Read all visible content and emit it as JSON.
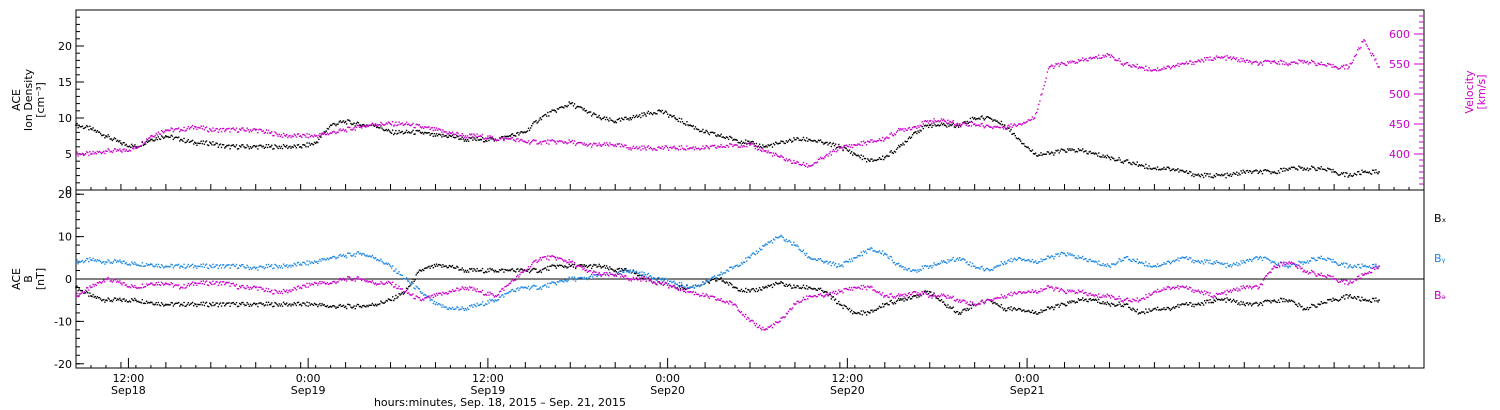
{
  "figure": {
    "footer_label": "hours:minutes, Sep. 18, 2015 – Sep. 21, 2015"
  },
  "colors": {
    "density": "#000000",
    "velocity": "#cc00cc",
    "bx": "#000000",
    "by": "#1e88e5",
    "bz": "#cc00cc"
  },
  "chart_data": [
    {
      "type": "scatter",
      "panel": "top",
      "xlim_hours": [
        0,
        90
      ],
      "left_axis": {
        "label_lines": [
          "ACE",
          "Ion Density",
          "[cm⁻³]"
        ],
        "ylim": [
          0,
          25
        ],
        "ticks": [
          0,
          5,
          10,
          15,
          20
        ]
      },
      "right_axis": {
        "label_lines": [
          "ACE",
          "Velocity",
          "[km/s]"
        ],
        "ylim": [
          340,
          640
        ],
        "ticks": [
          400,
          450,
          500,
          550,
          600
        ]
      },
      "series": [
        {
          "color_key": "density",
          "axis": "left",
          "x": [
            0,
            1,
            2,
            3,
            4,
            5,
            6,
            7,
            8,
            9,
            10,
            11,
            12,
            13,
            14,
            15,
            16,
            17,
            18,
            19,
            20,
            21,
            22,
            23,
            24,
            25,
            26,
            27,
            28,
            29,
            30,
            31,
            32,
            33,
            34,
            35,
            36,
            37,
            38,
            39,
            40,
            41,
            42,
            43,
            44,
            45,
            46,
            47,
            48,
            49,
            50,
            51,
            52,
            53,
            54,
            55,
            56,
            57,
            58,
            59,
            60,
            61,
            62,
            63,
            64,
            65,
            66,
            67,
            68,
            69,
            70,
            71,
            72,
            73,
            74,
            75,
            76,
            77,
            78,
            79,
            80,
            81,
            82,
            83,
            84,
            85,
            86,
            87
          ],
          "y": [
            9,
            8.5,
            7.5,
            6.5,
            6,
            7,
            7.5,
            7,
            6.5,
            6.5,
            6,
            6,
            6,
            6,
            6,
            6,
            6.5,
            9,
            9.5,
            9,
            9,
            8,
            8,
            8,
            7.5,
            7.5,
            7,
            7,
            7,
            7.5,
            8,
            10,
            11,
            12,
            11,
            10,
            9.5,
            10,
            10.5,
            11,
            10,
            9,
            8,
            7.5,
            7,
            6.5,
            6,
            6.5,
            7,
            7,
            6.5,
            6,
            5,
            4,
            4.5,
            6,
            8,
            9,
            9,
            9,
            10,
            10,
            9,
            7,
            5,
            5,
            5.5,
            5.5,
            5,
            4.5,
            4,
            3.5,
            3,
            3,
            2.5,
            2,
            2,
            2,
            2.5,
            2.5,
            2.5,
            3,
            3,
            3,
            2.5,
            2,
            2.5,
            2.5
          ]
        },
        {
          "color_key": "velocity",
          "axis": "right",
          "x": [
            0,
            1,
            2,
            3,
            4,
            5,
            6,
            7,
            8,
            9,
            10,
            11,
            12,
            13,
            14,
            15,
            16,
            17,
            18,
            19,
            20,
            21,
            22,
            23,
            24,
            25,
            26,
            27,
            28,
            29,
            30,
            31,
            32,
            33,
            34,
            35,
            36,
            37,
            38,
            39,
            40,
            41,
            42,
            43,
            44,
            45,
            46,
            47,
            48,
            49,
            50,
            51,
            52,
            53,
            54,
            55,
            56,
            57,
            58,
            59,
            60,
            61,
            62,
            63,
            64,
            65,
            66,
            67,
            68,
            69,
            70,
            71,
            72,
            73,
            74,
            75,
            76,
            77,
            78,
            79,
            80,
            81,
            82,
            83,
            84,
            85,
            86,
            87
          ],
          "y": [
            400,
            400,
            405,
            405,
            410,
            430,
            440,
            440,
            445,
            440,
            440,
            440,
            440,
            435,
            430,
            430,
            430,
            435,
            440,
            445,
            450,
            450,
            450,
            445,
            440,
            435,
            430,
            430,
            425,
            425,
            420,
            420,
            420,
            420,
            415,
            415,
            415,
            410,
            410,
            410,
            410,
            410,
            410,
            412,
            415,
            415,
            405,
            395,
            385,
            380,
            395,
            410,
            415,
            420,
            425,
            440,
            445,
            455,
            455,
            450,
            450,
            445,
            445,
            450,
            460,
            545,
            550,
            555,
            560,
            565,
            550,
            545,
            540,
            545,
            550,
            555,
            560,
            560,
            555,
            550,
            555,
            550,
            555,
            550,
            545,
            545,
            590,
            545
          ]
        }
      ]
    },
    {
      "type": "scatter",
      "panel": "bottom",
      "xlim_hours": [
        0,
        90
      ],
      "left_axis": {
        "label_lines": [
          "ACE",
          "B",
          "[nT]"
        ],
        "ylim": [
          -21,
          21
        ],
        "ticks": [
          -20,
          -10,
          0,
          10,
          20
        ]
      },
      "legend": [
        "Bₓ",
        "Bᵧ",
        "Bₔ"
      ],
      "x_ticks": [
        {
          "hour": 3.5,
          "line1": "12:00",
          "line2": "Sep18"
        },
        {
          "hour": 15.5,
          "line1": "0:00",
          "line2": "Sep19"
        },
        {
          "hour": 27.5,
          "line1": "12:00",
          "line2": "Sep19"
        },
        {
          "hour": 39.5,
          "line1": "0:00",
          "line2": "Sep20"
        },
        {
          "hour": 51.5,
          "line1": "12:00",
          "line2": "Sep20"
        },
        {
          "hour": 63.5,
          "line1": "0:00",
          "line2": "Sep21"
        }
      ],
      "series": [
        {
          "color_key": "bx",
          "x": [
            0,
            1,
            2,
            3,
            4,
            5,
            6,
            7,
            8,
            9,
            10,
            11,
            12,
            13,
            14,
            15,
            16,
            17,
            18,
            19,
            20,
            21,
            22,
            23,
            24,
            25,
            26,
            27,
            28,
            29,
            30,
            31,
            32,
            33,
            34,
            35,
            36,
            37,
            38,
            39,
            40,
            41,
            42,
            43,
            44,
            45,
            46,
            47,
            48,
            49,
            50,
            51,
            52,
            53,
            54,
            55,
            56,
            57,
            58,
            59,
            60,
            61,
            62,
            63,
            64,
            65,
            66,
            67,
            68,
            69,
            70,
            71,
            72,
            73,
            74,
            75,
            76,
            77,
            78,
            79,
            80,
            81,
            82,
            83,
            84,
            85,
            86,
            87
          ],
          "y": [
            -2,
            -4,
            -5,
            -5,
            -5,
            -5.5,
            -6,
            -6,
            -6,
            -6,
            -6,
            -6,
            -6,
            -6,
            -6,
            -6,
            -6,
            -6.5,
            -6.5,
            -6.5,
            -6,
            -5,
            -3,
            2,
            3,
            3,
            2,
            2,
            2,
            2,
            2,
            2,
            3,
            3,
            3,
            3,
            2,
            2,
            0,
            -1,
            -2,
            -2,
            -1,
            0,
            -2,
            -3,
            -2,
            -1,
            -2,
            -2,
            -3,
            -6,
            -8,
            -8,
            -6,
            -5,
            -4,
            -3,
            -6,
            -8,
            -6,
            -5,
            -7,
            -7,
            -8,
            -7,
            -6,
            -5,
            -5,
            -6,
            -6,
            -8,
            -7,
            -7,
            -6,
            -6,
            -5,
            -5,
            -6,
            -6,
            -5,
            -5,
            -7,
            -6,
            -5,
            -4,
            -5,
            -5
          ]
        },
        {
          "color_key": "by",
          "x": [
            0,
            1,
            2,
            3,
            4,
            5,
            6,
            7,
            8,
            9,
            10,
            11,
            12,
            13,
            14,
            15,
            16,
            17,
            18,
            19,
            20,
            21,
            22,
            23,
            24,
            25,
            26,
            27,
            28,
            29,
            30,
            31,
            32,
            33,
            34,
            35,
            36,
            37,
            38,
            39,
            40,
            41,
            42,
            43,
            44,
            45,
            46,
            47,
            48,
            49,
            50,
            51,
            52,
            53,
            54,
            55,
            56,
            57,
            58,
            59,
            60,
            61,
            62,
            63,
            64,
            65,
            66,
            67,
            68,
            69,
            70,
            71,
            72,
            73,
            74,
            75,
            76,
            77,
            78,
            79,
            80,
            81,
            82,
            83,
            84,
            85,
            86,
            87
          ],
          "y": [
            4,
            4.5,
            4,
            4,
            3.5,
            3.5,
            3,
            3,
            3,
            3,
            3,
            3,
            2.5,
            3,
            3,
            3.5,
            4,
            5,
            5.5,
            6,
            5,
            3,
            0,
            -3,
            -6,
            -7,
            -7,
            -6,
            -5,
            -3,
            -2,
            -2,
            -1,
            0,
            0,
            1,
            1,
            2,
            1,
            0,
            -1,
            -2,
            -1,
            1,
            3,
            5,
            8,
            10,
            8,
            5,
            4,
            3,
            5,
            7,
            6,
            3,
            2,
            3,
            4,
            5,
            3,
            2,
            4,
            5,
            4,
            5,
            6,
            5,
            4,
            3,
            5,
            4,
            3,
            4,
            5,
            4,
            4,
            3,
            4,
            5,
            4,
            3,
            4,
            5,
            4,
            3,
            3,
            3
          ]
        },
        {
          "color_key": "bz",
          "x": [
            0,
            1,
            2,
            3,
            4,
            5,
            6,
            7,
            8,
            9,
            10,
            11,
            12,
            13,
            14,
            15,
            16,
            17,
            18,
            19,
            20,
            21,
            22,
            23,
            24,
            25,
            26,
            27,
            28,
            29,
            30,
            31,
            32,
            33,
            34,
            35,
            36,
            37,
            38,
            39,
            40,
            41,
            42,
            43,
            44,
            45,
            46,
            47,
            48,
            49,
            50,
            51,
            52,
            53,
            54,
            55,
            56,
            57,
            58,
            59,
            60,
            61,
            62,
            63,
            64,
            65,
            66,
            67,
            68,
            69,
            70,
            71,
            72,
            73,
            74,
            75,
            76,
            77,
            78,
            79,
            80,
            81,
            82,
            83,
            84,
            85,
            86,
            87
          ],
          "y": [
            -4,
            -2,
            0,
            -1,
            -2,
            -1,
            -1,
            -2,
            -1,
            -1,
            -1,
            -2,
            -2,
            -3,
            -3,
            -2,
            -1,
            -1,
            0,
            0,
            -1,
            -1,
            -3,
            -5,
            -4,
            -3,
            -2,
            -3,
            -4,
            -1,
            2,
            5,
            5,
            4,
            2,
            1,
            1,
            0,
            0,
            -1,
            -2,
            -3,
            -4,
            -5,
            -6,
            -10,
            -12,
            -10,
            -6,
            -4,
            -4,
            -3,
            -2,
            -2,
            -4,
            -4,
            -3,
            -4,
            -4,
            -5,
            -6,
            -5,
            -4,
            -3,
            -3,
            -2,
            -3,
            -3,
            -4,
            -4,
            -5,
            -5,
            -3,
            -2,
            -2,
            -3,
            -4,
            -3,
            -2,
            -2,
            3,
            4,
            2,
            1,
            0,
            -1,
            1,
            3
          ]
        }
      ]
    }
  ]
}
